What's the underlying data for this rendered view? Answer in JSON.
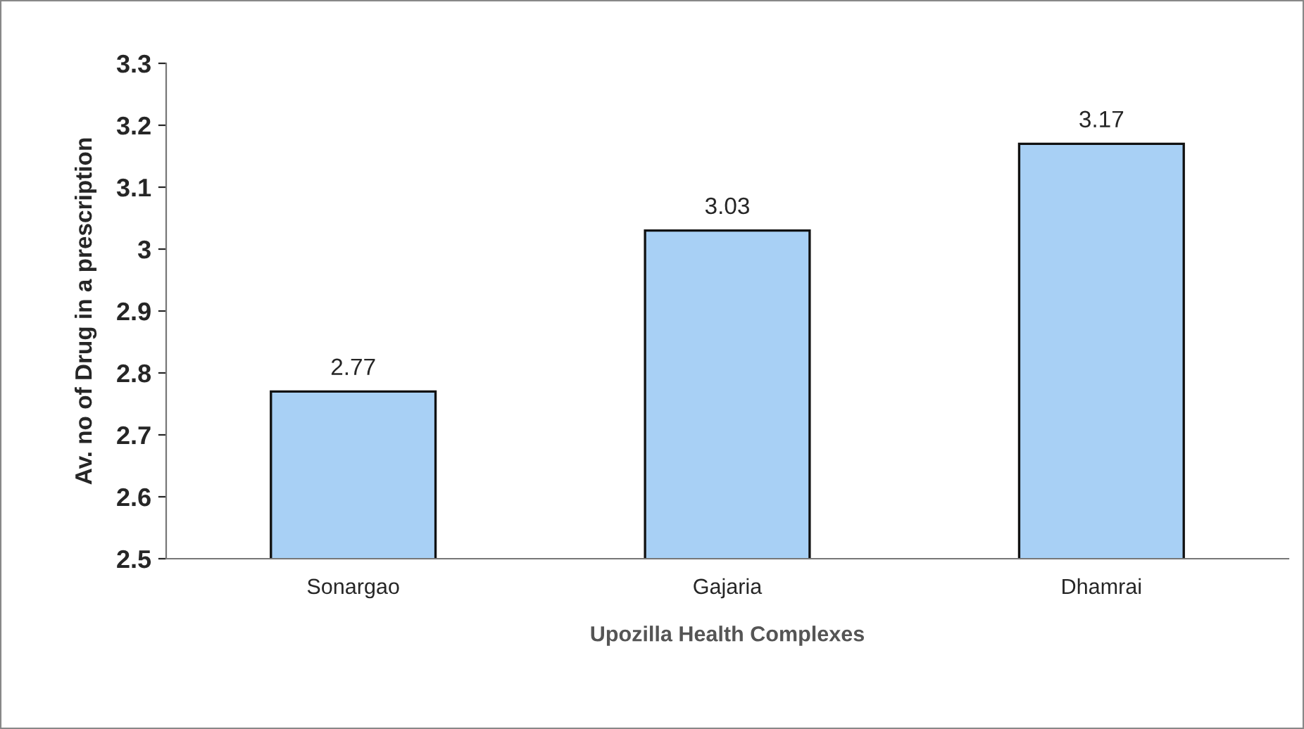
{
  "chart_data": {
    "type": "bar",
    "xlabel": "Upozilla Health Complexes",
    "ylabel": "Av. no of Drug in a prescription",
    "categories": [
      "Sonargao",
      "Gajaria",
      "Dhamrai"
    ],
    "values": [
      2.77,
      3.03,
      3.17
    ],
    "color": "#a8d0f5",
    "ylim": [
      2.5,
      3.3
    ],
    "yticks": [
      2.5,
      2.6,
      2.7,
      2.8,
      2.9,
      3,
      3.1,
      3.2,
      3.3
    ],
    "data_labels": true,
    "grid": false,
    "legend": false
  }
}
